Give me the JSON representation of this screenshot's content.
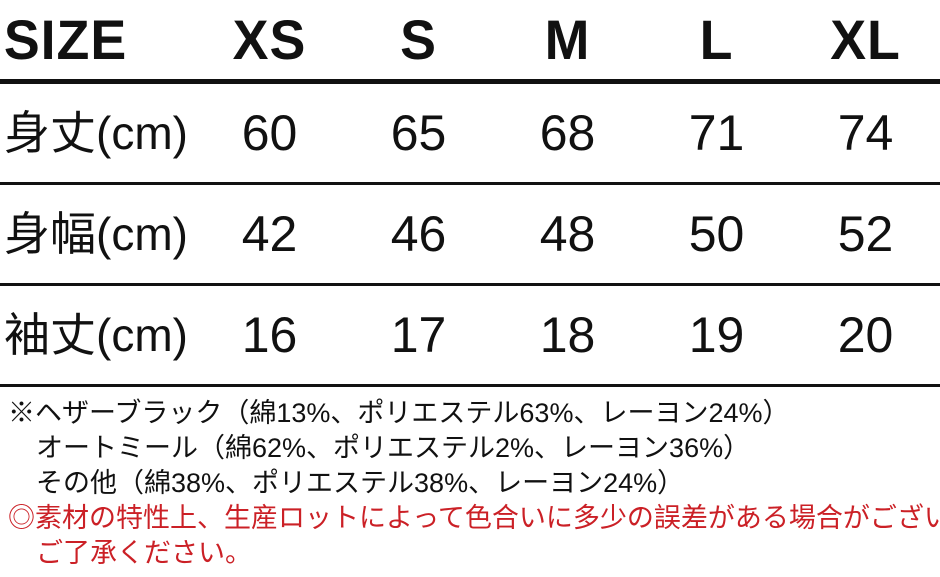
{
  "table": {
    "header": {
      "label": "SIZE",
      "sizes": [
        "XS",
        "S",
        "M",
        "L",
        "XL"
      ]
    },
    "rows": [
      {
        "label": "身丈(cm)",
        "values": [
          "60",
          "65",
          "68",
          "71",
          "74"
        ]
      },
      {
        "label": "身幅(cm)",
        "values": [
          "42",
          "46",
          "48",
          "50",
          "52"
        ]
      },
      {
        "label": "袖丈(cm)",
        "values": [
          "16",
          "17",
          "18",
          "19",
          "20"
        ]
      }
    ]
  },
  "notes": {
    "material_lines": [
      "※ヘザーブラック（綿13%、ポリエステル63%、レーヨン24%）",
      "オートミール（綿62%、ポリエステル2%、レーヨン36%）",
      "その他（綿38%、ポリエステル38%、レーヨン24%）"
    ],
    "warning_lines": [
      "◎素材の特性上、生産ロットによって色合いに多少の誤差がある場合がございます。",
      "ご了承ください。"
    ]
  },
  "colors": {
    "text_black": "#111111",
    "warning_red": "#cb2026",
    "background": "#ffffff"
  }
}
